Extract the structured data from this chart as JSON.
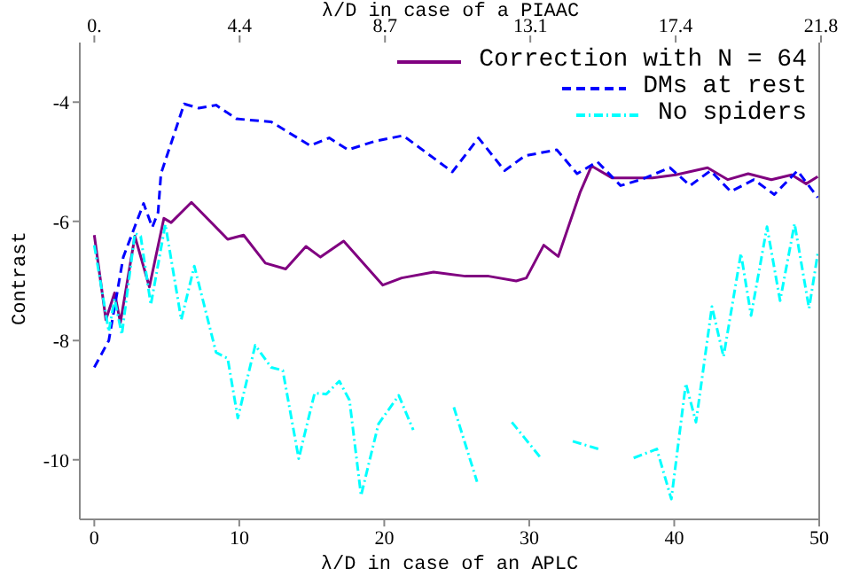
{
  "chart_data": {
    "type": "line",
    "xlabel": "λ/D in case of an APLC",
    "x2label": "λ/D in case of a PIAAC",
    "ylabel": "Contrast",
    "xlim": [
      -1,
      50
    ],
    "xticks": [
      0,
      10,
      20,
      30,
      40,
      50
    ],
    "x2lim": [
      -0.436,
      21.8
    ],
    "x2ticks": [
      {
        "value": 0,
        "label": "0."
      },
      {
        "value": 4.36,
        "label": "4.4"
      },
      {
        "value": 8.72,
        "label": "8.7"
      },
      {
        "value": 13.08,
        "label": "13.1"
      },
      {
        "value": 17.44,
        "label": "17.4"
      },
      21.8
    ],
    "ylim": [
      -11,
      -3
    ],
    "yticks": [
      -10,
      -8,
      -6,
      -4
    ],
    "grid": false,
    "legend": "top right",
    "marker": "none",
    "series": [
      {
        "name": "Correction with N =  64",
        "color": "#800080",
        "line_style": "solid",
        "x": [
          0,
          0.8,
          1.4,
          1.8,
          2.8,
          3.8,
          4.8,
          5.3,
          6.7,
          9.2,
          10.3,
          11.8,
          13.2,
          14.6,
          15.6,
          17.2,
          19.9,
          21.2,
          23.4,
          25.6,
          27.2,
          29.1,
          29.8,
          31,
          32,
          33.5,
          34.3,
          35.7,
          38.5,
          40.1,
          42.3,
          43.7,
          45.1,
          46.7,
          48.1,
          49.1,
          49.9
        ],
        "values": [
          -6.23,
          -7.65,
          -7.2,
          -7.7,
          -6.25,
          -7.1,
          -5.95,
          -6.02,
          -5.68,
          -6.3,
          -6.23,
          -6.7,
          -6.8,
          -6.42,
          -6.6,
          -6.33,
          -7.07,
          -6.95,
          -6.85,
          -6.92,
          -6.92,
          -7.0,
          -6.95,
          -6.4,
          -6.59,
          -5.52,
          -5.07,
          -5.27,
          -5.27,
          -5.22,
          -5.1,
          -5.3,
          -5.2,
          -5.3,
          -5.22,
          -5.37,
          -5.25
        ]
      },
      {
        "name": "DMs at rest",
        "color": "#0000ff",
        "line_style": "dashed",
        "x": [
          0,
          1,
          2,
          3.4,
          4,
          4.4,
          4.6,
          6.2,
          7.2,
          8.4,
          9.8,
          12.2,
          14.9,
          16.2,
          17.5,
          19.3,
          21.3,
          24.7,
          26.5,
          28.3,
          29.7,
          31.9,
          33.3,
          34.7,
          36.3,
          37.7,
          39.7,
          41.1,
          42.5,
          43.9,
          45.5,
          46.9,
          48.5,
          49.9
        ],
        "values": [
          -8.45,
          -8,
          -6.6,
          -5.7,
          -6.1,
          -5.85,
          -5.2,
          -4.03,
          -4.1,
          -4.05,
          -4.28,
          -4.33,
          -4.73,
          -4.6,
          -4.8,
          -4.66,
          -4.56,
          -5.17,
          -4.6,
          -5.15,
          -4.9,
          -4.8,
          -5.2,
          -5.0,
          -5.4,
          -5.3,
          -5.1,
          -5.4,
          -5.15,
          -5.5,
          -5.3,
          -5.55,
          -5.15,
          -5.6
        ]
      },
      {
        "name": "No spiders",
        "color": "#00ffff",
        "line_style": "dotted",
        "x": [
          0,
          1,
          1.4,
          1.9,
          2.8,
          3.2,
          3.9,
          4.9,
          6,
          6.9,
          8.4,
          9.2,
          9.9,
          11.1,
          12.2,
          13,
          14.1,
          15.2,
          16,
          16.9,
          17.6,
          18.4,
          19.6,
          21,
          22,
          22.8,
          24.8,
          26.4,
          27.5,
          28.8,
          30.8,
          31.7,
          33,
          34.8,
          35.9,
          37.2,
          38.8,
          39.8,
          40.8,
          41.5,
          42.6,
          43.4,
          44.6,
          45.3,
          46.4,
          47.3,
          48.3,
          49.3,
          49.9
        ],
        "values": [
          -6.4,
          -7.85,
          -7.3,
          -7.9,
          -6.2,
          -6.25,
          -7.4,
          -6.05,
          -7.65,
          -6.75,
          -8.2,
          -8.3,
          -9.3,
          -8.08,
          -8.45,
          -8.5,
          -9.98,
          -8.88,
          -8.9,
          -8.68,
          -9,
          -10.6,
          -9.4,
          -8.92,
          -9.5,
          null,
          -9.12,
          -10.37,
          null,
          -9.37,
          -9.97,
          null,
          -9.69,
          -9.82,
          null,
          -9.97,
          -9.82,
          -10.66,
          -8.72,
          -9.37,
          -7.43,
          -8.27,
          -6.54,
          -7.58,
          -6.09,
          -7.33,
          -6.04,
          -7.46,
          -6.54
        ]
      }
    ]
  }
}
